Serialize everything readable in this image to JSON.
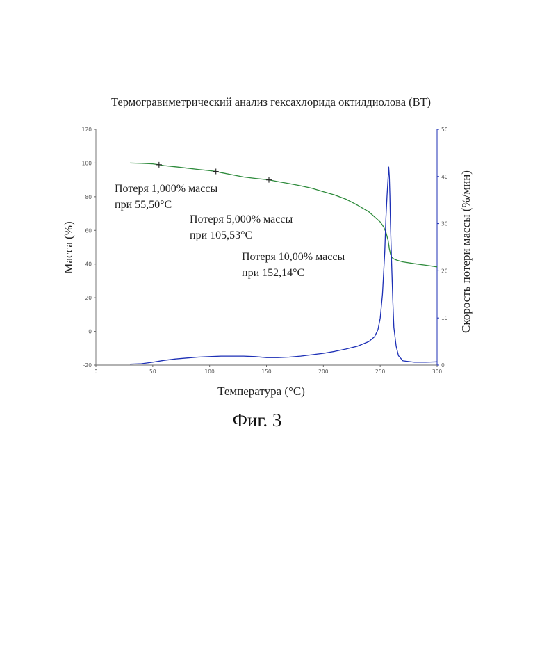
{
  "figure": {
    "caption": "Фиг. 3"
  },
  "chart_data": {
    "type": "line",
    "title": "Термогравиметрический анализ гексахлорида октилдиолова (ВТ)",
    "xlabel": "Температура (°C)",
    "ylabel": "Масса (%)",
    "y2label": "Скорость потери массы (%/мин)",
    "xlim": [
      0,
      300
    ],
    "ylim": [
      -20,
      120
    ],
    "y2lim": [
      0,
      50
    ],
    "x_ticks": [
      "0",
      "50",
      "100",
      "150",
      "200",
      "250",
      "300"
    ],
    "y_ticks": [
      "-20",
      "0",
      "20",
      "40",
      "60",
      "80",
      "100",
      "120"
    ],
    "y2_ticks": [
      "0",
      "10",
      "20",
      "30",
      "40",
      "50"
    ],
    "grid": false,
    "series": [
      {
        "name": "",
        "axis": "left",
        "color": "#2e8b3c",
        "x": [
          30,
          40,
          50,
          55.5,
          60,
          70,
          80,
          90,
          100,
          105.53,
          110,
          120,
          130,
          140,
          152.14,
          160,
          170,
          180,
          190,
          200,
          210,
          220,
          230,
          235,
          240,
          245,
          250,
          253,
          255,
          257,
          258,
          259,
          260,
          262,
          265,
          270,
          280,
          290,
          300
        ],
        "y": [
          100,
          99.8,
          99.5,
          99,
          98.5,
          97.8,
          97,
          96.2,
          95.5,
          95,
          94.3,
          93,
          91.7,
          90.9,
          90,
          89,
          87.8,
          86.5,
          85,
          83,
          81,
          78.5,
          75,
          73,
          71,
          68,
          65,
          62,
          59,
          54,
          49,
          46,
          44,
          43,
          42.2,
          41.3,
          40.2,
          39.3,
          38.3
        ]
      },
      {
        "name": "",
        "axis": "right",
        "color": "#1c2fb5",
        "x": [
          30,
          40,
          50,
          60,
          70,
          80,
          90,
          100,
          110,
          120,
          130,
          140,
          150,
          160,
          170,
          180,
          190,
          200,
          210,
          220,
          230,
          240,
          245,
          248,
          250,
          252,
          254,
          255,
          256,
          257,
          257.5,
          258,
          258.5,
          259,
          260,
          261,
          262,
          264,
          266,
          270,
          280,
          290,
          300
        ],
        "y": [
          0.2,
          0.3,
          0.6,
          1.0,
          1.3,
          1.5,
          1.7,
          1.8,
          1.9,
          1.9,
          1.9,
          1.8,
          1.6,
          1.6,
          1.7,
          1.9,
          2.2,
          2.5,
          2.9,
          3.4,
          4.0,
          5.0,
          6.0,
          7.5,
          10,
          15,
          24,
          31,
          36,
          40,
          42,
          40,
          36,
          30,
          22,
          14,
          8,
          4,
          2,
          0.9,
          0.6,
          0.6,
          0.7
        ]
      }
    ],
    "markers": [
      {
        "x": 55.5,
        "y": 99
      },
      {
        "x": 105.53,
        "y": 95
      },
      {
        "x": 152.14,
        "y": 90
      }
    ],
    "annotations": [
      {
        "line1": "Потеря 1,000% массы",
        "line2": "при 55,50°C"
      },
      {
        "line1": "Потеря 5,000% массы",
        "line2": "при 105,53°C"
      },
      {
        "line1": "Потеря 10,00% массы",
        "line2": "при 152,14°C"
      }
    ]
  }
}
